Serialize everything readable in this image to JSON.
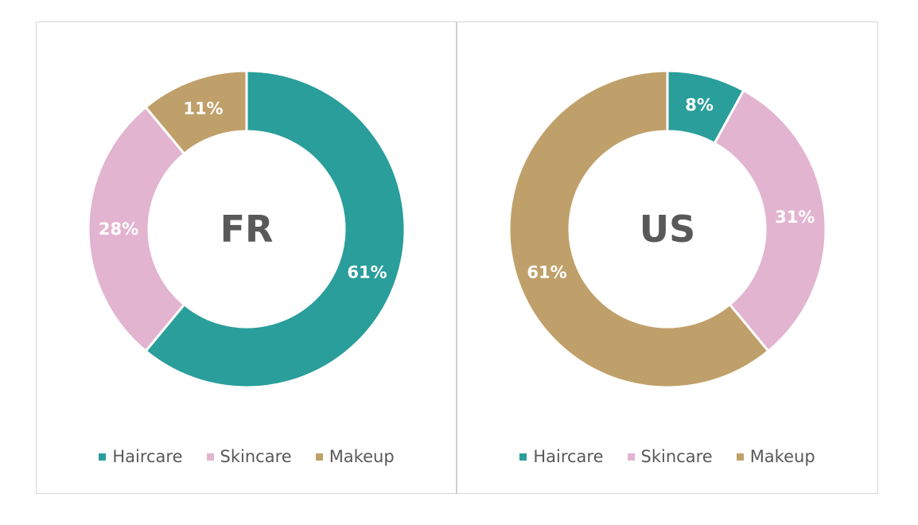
{
  "colors": {
    "Haircare": "#2a9e9a",
    "Skincare": "#e2b4d0",
    "Makeup": "#c0a06a"
  },
  "chart_data": [
    {
      "type": "pie",
      "title": "FR",
      "categories": [
        "Haircare",
        "Skincare",
        "Makeup"
      ],
      "values": [
        61,
        28,
        11
      ],
      "labels": [
        "61%",
        "28%",
        "11%"
      ],
      "legend": "bottom"
    },
    {
      "type": "pie",
      "title": "US",
      "categories": [
        "Haircare",
        "Skincare",
        "Makeup"
      ],
      "values": [
        8,
        31,
        61
      ],
      "labels": [
        "8%",
        "31%",
        "61%"
      ],
      "legend": "bottom"
    }
  ]
}
